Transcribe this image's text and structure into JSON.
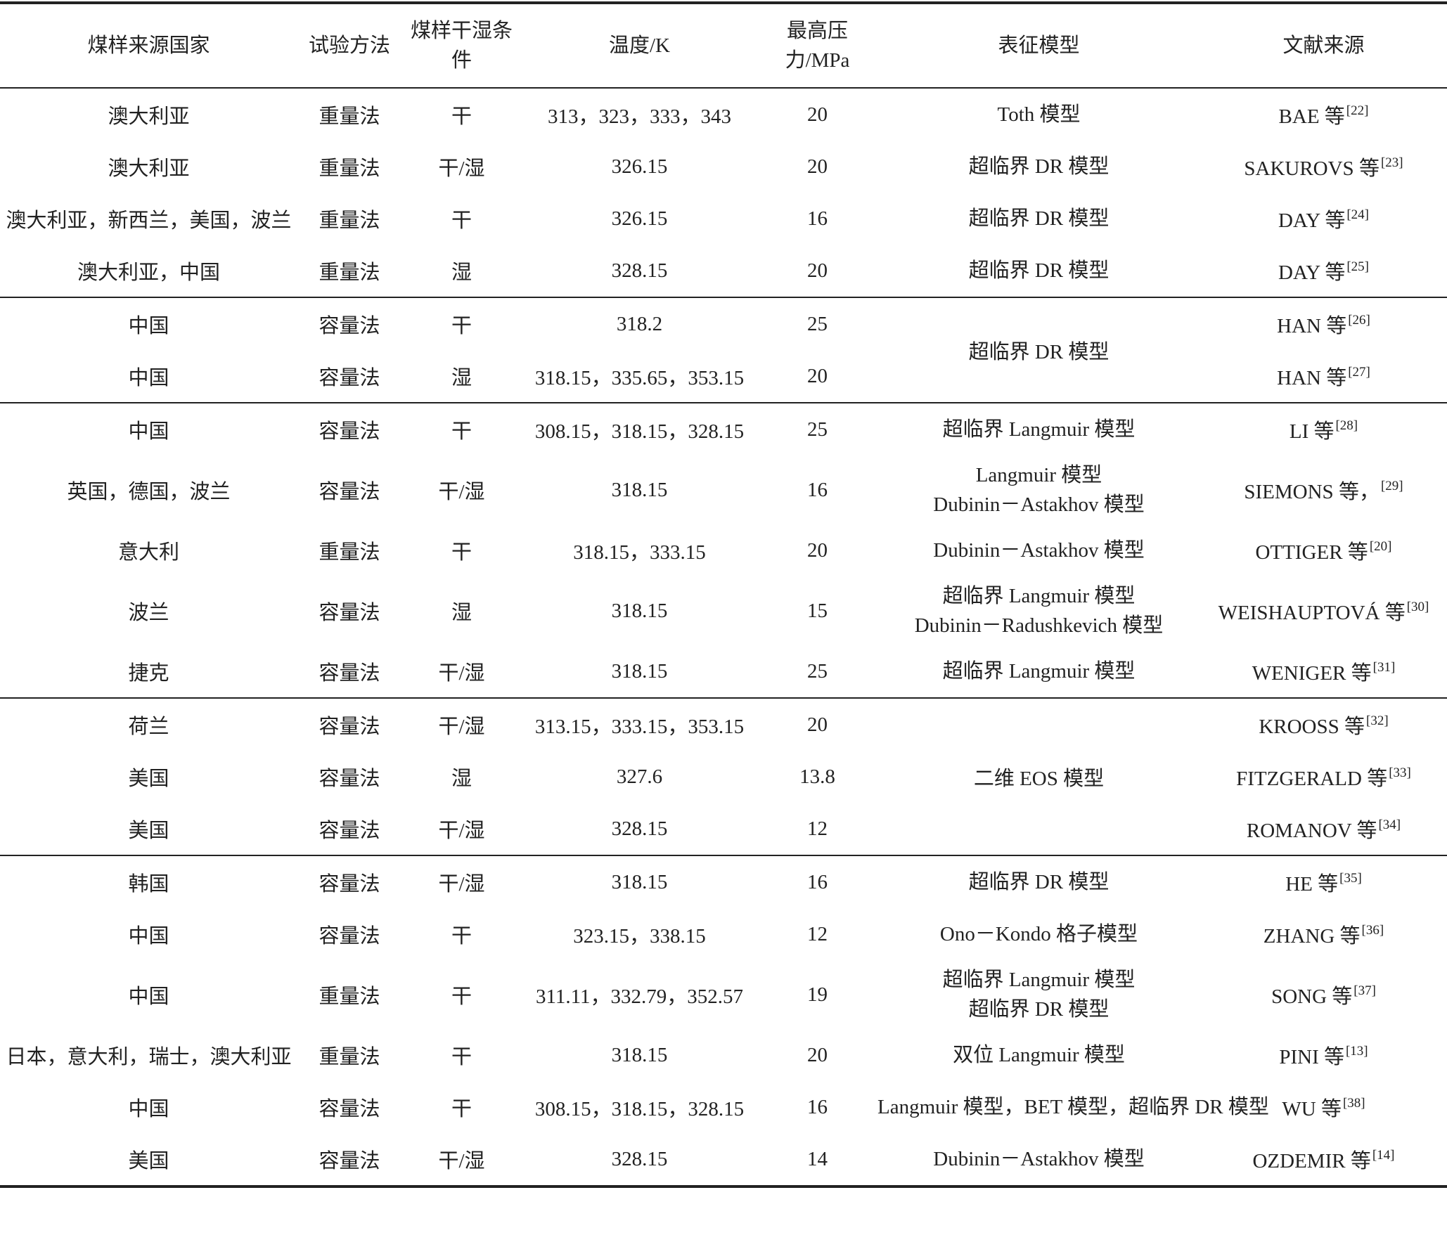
{
  "table": {
    "header": [
      "煤样来源国家",
      "试验方法",
      "煤样干湿条件",
      "温度/K",
      "最高压力/MPa",
      "表征模型",
      "文献来源"
    ],
    "groups": [
      {
        "rows": [
          {
            "country": "澳大利亚",
            "method": "重量法",
            "condition": "干",
            "temperature": "313，323，333，343",
            "pressure": 20,
            "model": [
              "Toth 模型"
            ],
            "ref": {
              "name": "BAE 等",
              "cite": "[22]"
            }
          },
          {
            "country": "澳大利亚",
            "method": "重量法",
            "condition": "干/湿",
            "temperature": "326.15",
            "pressure": 20,
            "model": [
              "超临界 DR 模型"
            ],
            "ref": {
              "name": "SAKUROVS 等",
              "cite": "[23]"
            }
          },
          {
            "country": "澳大利亚，新西兰，美国，波兰",
            "method": "重量法",
            "condition": "干",
            "temperature": "326.15",
            "pressure": 16,
            "model": [
              "超临界 DR 模型"
            ],
            "ref": {
              "name": "DAY 等",
              "cite": "[24]"
            }
          },
          {
            "country": "澳大利亚，中国",
            "method": "重量法",
            "condition": "湿",
            "temperature": "328.15",
            "pressure": 20,
            "model": [
              "超临界 DR 模型"
            ],
            "ref": {
              "name": "DAY 等",
              "cite": "[25]"
            }
          }
        ]
      },
      {
        "model": "超临界 DR 模型",
        "rows": [
          {
            "country": "中国",
            "method": "容量法",
            "condition": "干",
            "temperature": "318.2",
            "pressure": 25,
            "ref": {
              "name": "HAN 等",
              "cite": "[26]"
            }
          },
          {
            "country": "中国",
            "method": "容量法",
            "condition": "湿",
            "temperature": "318.15，335.65，353.15",
            "pressure": 20,
            "ref": {
              "name": "HAN 等",
              "cite": "[27]"
            }
          }
        ]
      },
      {
        "rows": [
          {
            "country": "中国",
            "method": "容量法",
            "condition": "干",
            "temperature": "308.15，318.15，328.15",
            "pressure": 25,
            "model": [
              "超临界 Langmuir 模型"
            ],
            "ref": {
              "name": "LI 等",
              "cite": "[28]"
            }
          },
          {
            "country": "英国，德国，波兰",
            "method": "容量法",
            "condition": "干/湿",
            "temperature": "318.15",
            "pressure": 16,
            "model": [
              "Langmuir 模型",
              "Dubinin－Astakhov 模型"
            ],
            "ref": {
              "name": "SIEMONS 等，",
              "cite": "[29]"
            }
          },
          {
            "country": "意大利",
            "method": "重量法",
            "condition": "干",
            "temperature": "318.15，333.15",
            "pressure": 20,
            "model": [
              "Dubinin－Astakhov 模型"
            ],
            "ref": {
              "name": "OTTIGER 等",
              "cite": "[20]"
            }
          },
          {
            "country": "波兰",
            "method": "容量法",
            "condition": "湿",
            "temperature": "318.15",
            "pressure": 15,
            "model": [
              "超临界 Langmuir 模型",
              "Dubinin－Radushkevich 模型"
            ],
            "ref": {
              "name": "WEISHAUPTOVÁ 等",
              "cite": "[30]"
            }
          },
          {
            "country": "捷克",
            "method": "容量法",
            "condition": "干/湿",
            "temperature": "318.15",
            "pressure": 25,
            "model": [
              "超临界 Langmuir 模型"
            ],
            "ref": {
              "name": "WENIGER 等",
              "cite": "[31]"
            }
          }
        ]
      },
      {
        "model": "二维 EOS 模型",
        "rows": [
          {
            "country": "荷兰",
            "method": "容量法",
            "condition": "干/湿",
            "temperature": "313.15，333.15，353.15",
            "pressure": 20,
            "ref": {
              "name": "KROOSS 等",
              "cite": "[32]"
            }
          },
          {
            "country": "美国",
            "method": "容量法",
            "condition": "湿",
            "temperature": "327.6",
            "pressure": 13.8,
            "ref": {
              "name": "FITZGERALD 等",
              "cite": "[33]"
            }
          },
          {
            "country": "美国",
            "method": "容量法",
            "condition": "干/湿",
            "temperature": "328.15",
            "pressure": 12,
            "ref": {
              "name": "ROMANOV 等",
              "cite": "[34]"
            }
          }
        ]
      },
      {
        "rows": [
          {
            "country": "韩国",
            "method": "容量法",
            "condition": "干/湿",
            "temperature": "318.15",
            "pressure": 16,
            "model": [
              "超临界 DR 模型"
            ],
            "ref": {
              "name": "HE 等",
              "cite": "[35]"
            }
          },
          {
            "country": "中国",
            "method": "容量法",
            "condition": "干",
            "temperature": "323.15，338.15",
            "pressure": 12,
            "model": [
              "Ono－Kondo 格子模型"
            ],
            "ref": {
              "name": "ZHANG 等",
              "cite": "[36]"
            }
          },
          {
            "country": "中国",
            "method": "重量法",
            "condition": "干",
            "temperature": "311.11，332.79，352.57",
            "pressure": 19,
            "model": [
              "超临界 Langmuir 模型",
              "超临界 DR 模型"
            ],
            "ref": {
              "name": "SONG 等",
              "cite": "[37]"
            }
          },
          {
            "country": "日本，意大利，瑞士，澳大利亚",
            "method": "重量法",
            "condition": "干",
            "temperature": "318.15",
            "pressure": 20,
            "model": [
              "双位 Langmuir 模型"
            ],
            "ref": {
              "name": "PINI 等",
              "cite": "[13]"
            }
          },
          {
            "country": "中国",
            "method": "容量法",
            "condition": "干",
            "temperature": "308.15，318.15，328.15",
            "pressure": 16,
            "model": [
              "Langmuir 模型，BET 模型，超临界 DR 模型"
            ],
            "ref": {
              "name": "WU 等",
              "cite": "[38]"
            }
          },
          {
            "country": "美国",
            "method": "容量法",
            "condition": "干/湿",
            "temperature": "328.15",
            "pressure": 14,
            "model": [
              "Dubinin－Astakhov 模型"
            ],
            "ref": {
              "name": "OZDEMIR 等",
              "cite": "[14]"
            }
          }
        ]
      }
    ]
  }
}
